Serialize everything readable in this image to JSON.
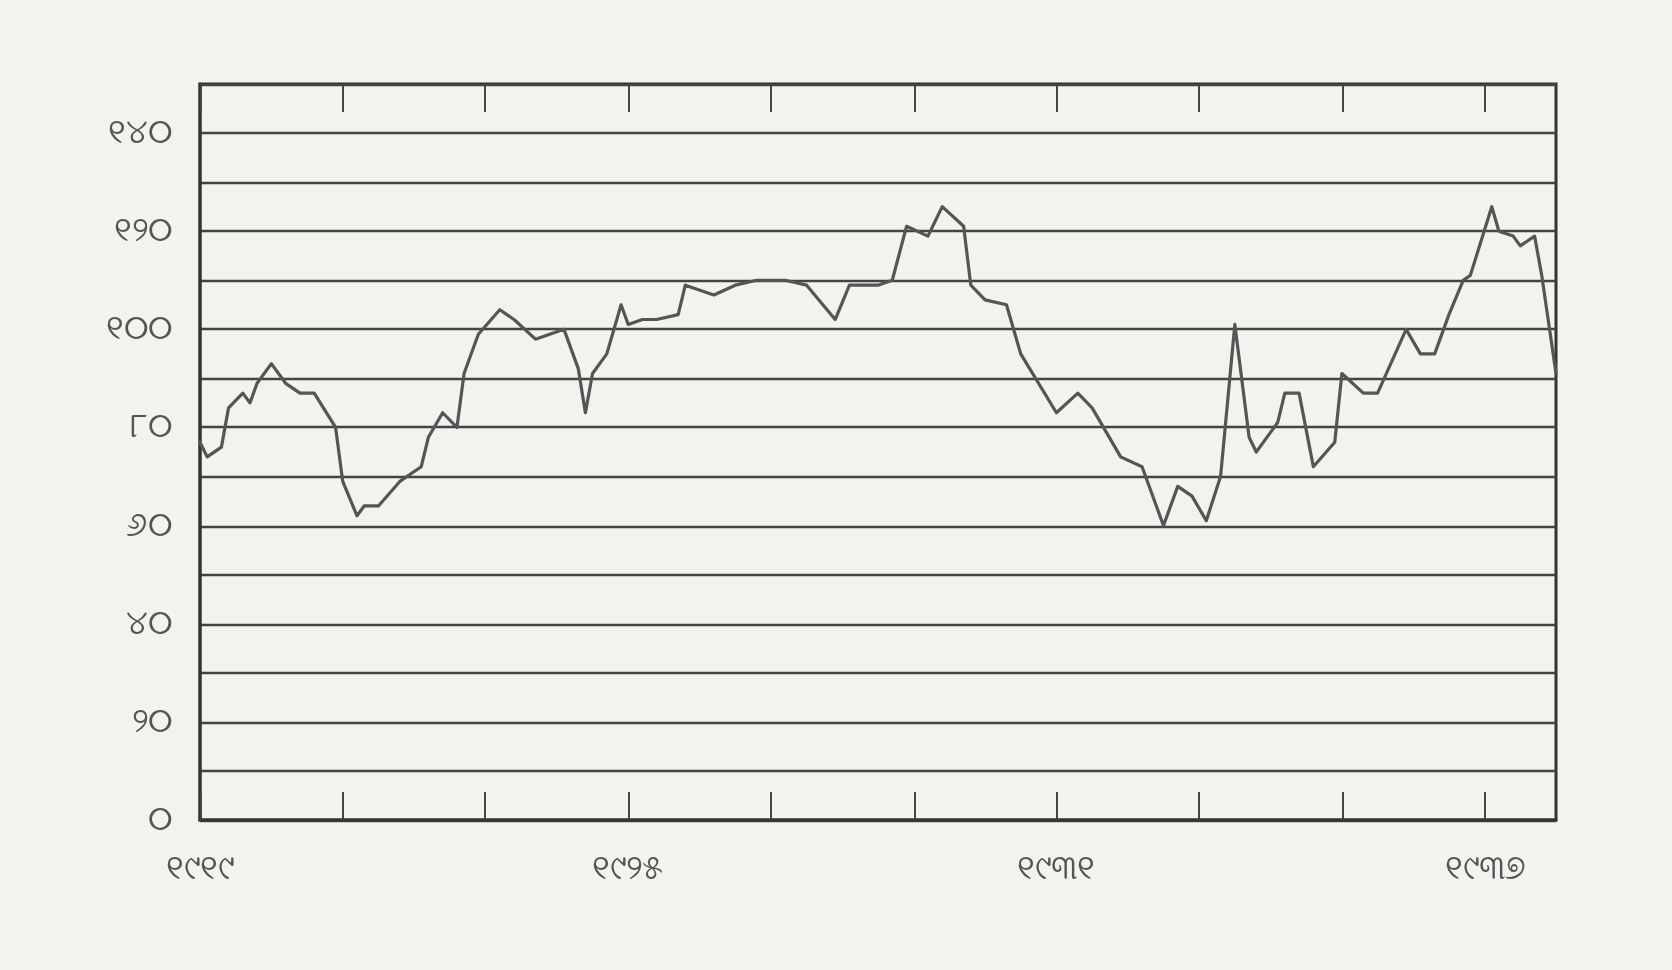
{
  "chart_data": {
    "type": "line",
    "x": [
      1919.0,
      1919.1,
      1919.3,
      1919.4,
      1919.6,
      1919.7,
      1919.8,
      1920.0,
      1920.2,
      1920.4,
      1920.6,
      1920.9,
      1921.0,
      1921.2,
      1921.3,
      1921.5,
      1921.8,
      1922.1,
      1922.2,
      1922.4,
      1922.6,
      1922.7,
      1922.9,
      1923.2,
      1923.4,
      1923.7,
      1924.1,
      1924.3,
      1924.4,
      1924.5,
      1924.7,
      1924.9,
      1925.0,
      1925.2,
      1925.4,
      1925.7,
      1925.8,
      1926.2,
      1926.5,
      1926.8,
      1927.2,
      1927.5,
      1927.9,
      1928.1,
      1928.5,
      1928.7,
      1928.9,
      1929.2,
      1929.4,
      1929.7,
      1929.8,
      1930.0,
      1930.3,
      1930.5,
      1931.0,
      1931.3,
      1931.5,
      1931.9,
      1932.2,
      1932.5,
      1932.7,
      1932.9,
      1933.1,
      1933.3,
      1933.5,
      1933.7,
      1933.8,
      1934.1,
      1934.2,
      1934.4,
      1934.6,
      1934.9,
      1935.0,
      1935.3,
      1935.5,
      1935.9,
      1936.1,
      1936.3,
      1936.5,
      1936.7,
      1936.8,
      1937.1,
      1937.2,
      1937.4,
      1937.5,
      1937.7,
      1937.8,
      1938.0
    ],
    "series": [
      {
        "color": "#555555",
        "values": [
          77,
          74,
          76,
          84,
          87,
          85,
          89,
          93,
          89,
          87,
          87,
          80,
          69,
          62,
          64,
          64,
          69,
          72,
          78,
          83,
          80,
          91,
          99,
          104,
          102,
          98,
          100,
          92,
          83,
          91,
          95,
          105,
          101,
          102,
          102,
          103,
          109,
          107,
          109,
          110,
          110,
          109,
          102,
          109,
          109,
          110,
          121,
          119,
          125,
          121,
          109,
          106,
          105,
          95,
          83,
          87,
          84,
          74,
          72,
          60,
          68,
          66,
          61,
          70,
          101,
          78,
          75,
          81,
          87,
          87,
          72,
          77,
          91,
          87,
          87,
          100,
          95,
          95,
          103,
          110,
          111,
          125,
          120,
          119,
          117,
          119,
          111,
          91
        ]
      }
    ],
    "xlim": [
      1919,
      1938
    ],
    "xticks": [
      {
        "value": 1919,
        "label": "୧୯୧୯"
      },
      {
        "value": 1921,
        "label": null
      },
      {
        "value": 1923,
        "label": null
      },
      {
        "value": 1925,
        "label": "୧୯୨୫"
      },
      {
        "value": 1927,
        "label": null
      },
      {
        "value": 1929,
        "label": null
      },
      {
        "value": 1931,
        "label": "୧୯୩୧"
      },
      {
        "value": 1933,
        "label": null
      },
      {
        "value": 1935,
        "label": null
      },
      {
        "value": 1937,
        "label": "୧୯୩୭"
      }
    ],
    "ylim": [
      0,
      150
    ],
    "yticks": [
      {
        "value": 0,
        "label": "୦"
      },
      {
        "value": 10,
        "label": null
      },
      {
        "value": 20,
        "label": "୨୦"
      },
      {
        "value": 30,
        "label": null
      },
      {
        "value": 40,
        "label": "୪୦"
      },
      {
        "value": 50,
        "label": null
      },
      {
        "value": 60,
        "label": "୬୦"
      },
      {
        "value": 70,
        "label": null
      },
      {
        "value": 80,
        "label": "୮୦"
      },
      {
        "value": 90,
        "label": null
      },
      {
        "value": 100,
        "label": "୧୦୦"
      },
      {
        "value": 110,
        "label": null
      },
      {
        "value": 120,
        "label": "୧୨୦"
      },
      {
        "value": 130,
        "label": null
      },
      {
        "value": 140,
        "label": "୧୪୦"
      }
    ],
    "grid": "y",
    "marker": "none",
    "line_style": "solid"
  }
}
